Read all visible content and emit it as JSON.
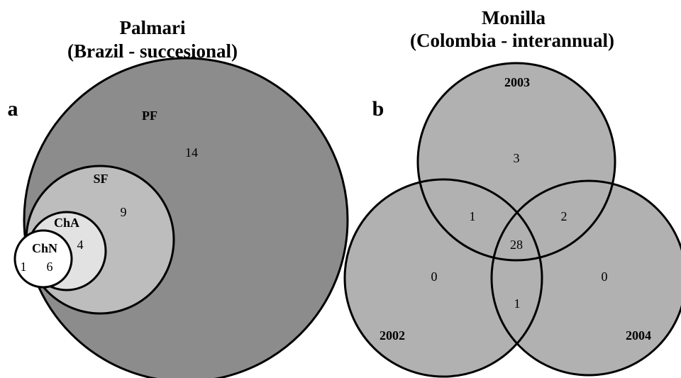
{
  "panels": [
    {
      "title": [
        "Palmari",
        "(Brazil - succesional)"
      ],
      "label": "a",
      "sets": [
        "PF",
        "SF",
        "ChA",
        "ChN"
      ],
      "regions": [
        14,
        9,
        4,
        6,
        1
      ]
    },
    {
      "title": [
        "Monilla",
        "(Colombia - interannual)"
      ],
      "label": "b",
      "sets": [
        "2003",
        "2002",
        "2004"
      ],
      "regions": [
        3,
        1,
        2,
        28,
        0,
        0,
        1
      ]
    }
  ]
}
